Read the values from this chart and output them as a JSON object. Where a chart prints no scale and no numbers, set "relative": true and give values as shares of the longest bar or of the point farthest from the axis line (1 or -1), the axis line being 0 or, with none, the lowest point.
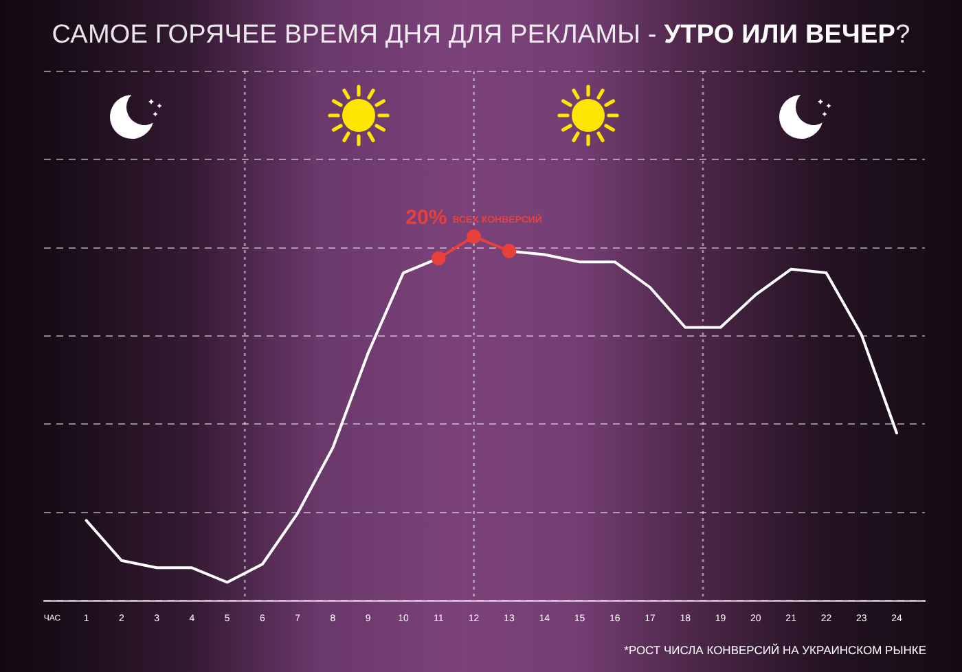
{
  "chart_data": {
    "type": "line",
    "title": "САМОЕ ГОРЯЧЕЕ ВРЕМЯ ДНЯ ДЛЯ РЕКЛАМЫ - УТРО ИЛИ ВЕЧЕР?",
    "xlabel": "ЧАС",
    "relative": true,
    "x": [
      1,
      2,
      3,
      4,
      5,
      6,
      7,
      8,
      9,
      10,
      11,
      12,
      13,
      14,
      15,
      16,
      17,
      18,
      19,
      20,
      21,
      22,
      23,
      24
    ],
    "xlim": [
      -0.2,
      24.8
    ],
    "xticks": [
      1,
      2,
      3,
      4,
      5,
      6,
      7,
      8,
      9,
      10,
      11,
      12,
      13,
      14,
      15,
      16,
      17,
      18,
      19,
      20,
      21,
      22,
      23,
      24
    ],
    "series": [
      {
        "color": "#ffffff",
        "values": [
          0.22,
          0.11,
          0.09,
          0.09,
          0.05,
          0.1,
          0.24,
          0.42,
          0.68,
          0.9,
          0.94,
          null,
          0.96,
          0.95,
          0.93,
          0.93,
          0.86,
          0.75,
          0.75,
          0.84,
          0.91,
          0.9,
          0.73,
          0.46
        ]
      },
      {
        "color": "#e8403b",
        "x": [
          11,
          12,
          13
        ],
        "values": [
          0.94,
          1,
          0.96
        ],
        "marker": "circle"
      }
    ],
    "marker": "none",
    "grid": "y",
    "legend": false,
    "ref_lines": [
      {
        "axis": "x",
        "value": 5.5,
        "line_style": "dotted"
      },
      {
        "axis": "x",
        "value": 12,
        "line_style": "dotted"
      },
      {
        "axis": "x",
        "value": 18.5,
        "line_style": "dotted"
      }
    ],
    "annotations": [
      {
        "text": "20% ВСЕХ КОНВЕРСИЙ",
        "x": 12,
        "y": 1
      },
      "*РОСТ ЧИСЛА КОНВЕРСИЙ НА УКРАИНСКОМ РЫНКЕ"
    ]
  }
}
